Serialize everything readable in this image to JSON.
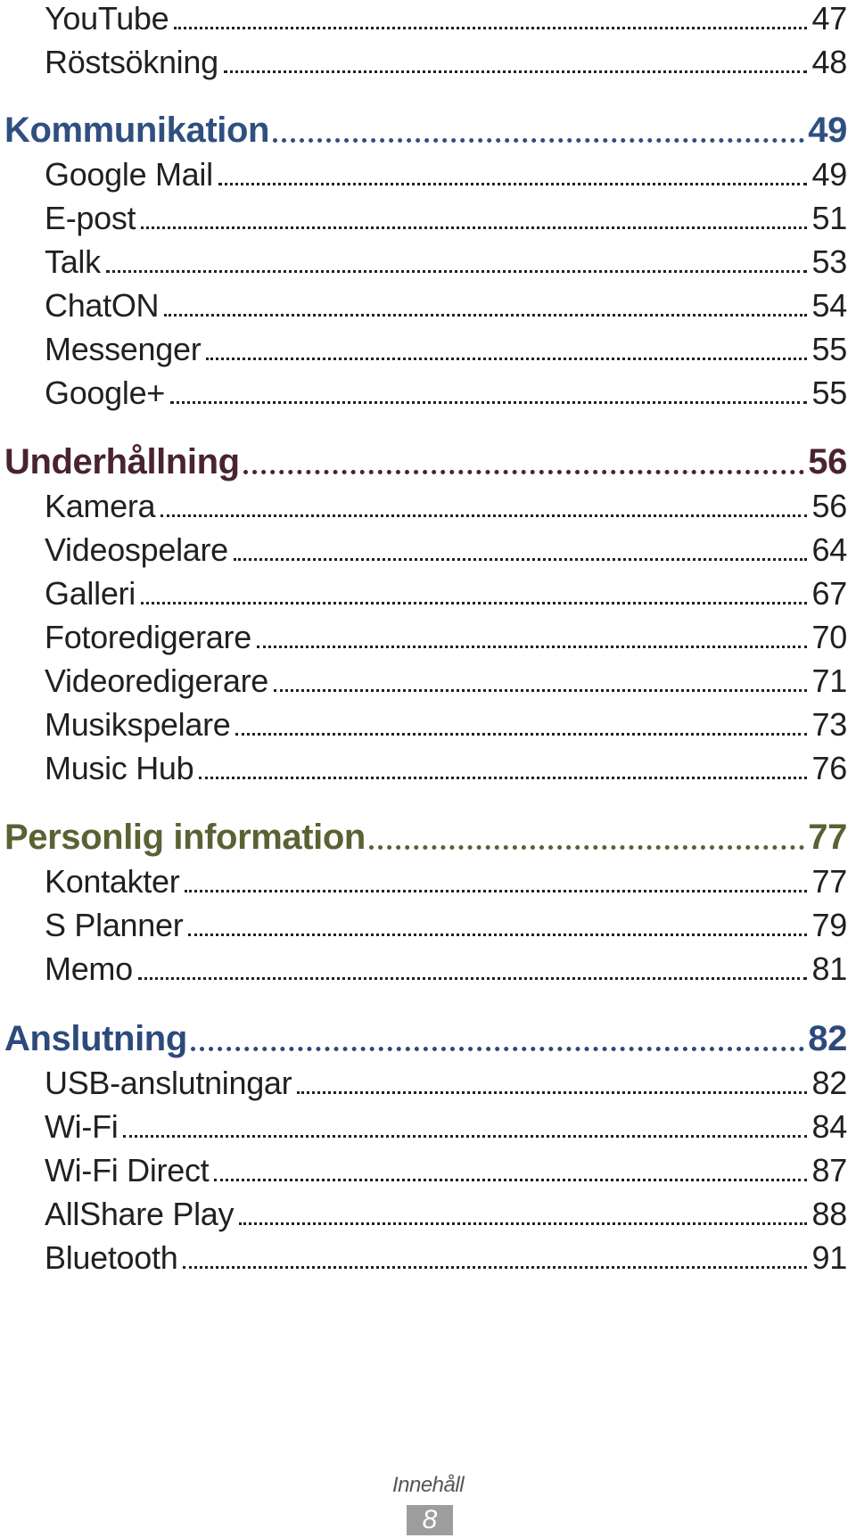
{
  "colors": {
    "text": "#231f20",
    "kommunikation": "#2f4f7f",
    "underhallning": "#4a2331",
    "personlig": "#5b6133",
    "anslutning": "#2c4a7b",
    "footer_badge": "#9d9d9d"
  },
  "toc": {
    "items": [
      {
        "type": "item",
        "title": "YouTube",
        "page": "47"
      },
      {
        "type": "item",
        "title": "Röstsökning",
        "page": "48"
      },
      {
        "type": "section",
        "title": "Kommunikation",
        "page": "49"
      },
      {
        "type": "item",
        "title": "Google Mail",
        "page": "49"
      },
      {
        "type": "item",
        "title": "E-post",
        "page": "51"
      },
      {
        "type": "item",
        "title": "Talk",
        "page": "53"
      },
      {
        "type": "item",
        "title": "ChatON",
        "page": "54"
      },
      {
        "type": "item",
        "title": "Messenger",
        "page": "55"
      },
      {
        "type": "item",
        "title": "Google+",
        "page": "55"
      },
      {
        "type": "section",
        "title": "Underhållning",
        "page": "56"
      },
      {
        "type": "item",
        "title": "Kamera",
        "page": "56"
      },
      {
        "type": "item",
        "title": "Videospelare",
        "page": "64"
      },
      {
        "type": "item",
        "title": "Galleri",
        "page": "67"
      },
      {
        "type": "item",
        "title": "Fotoredigerare",
        "page": "70"
      },
      {
        "type": "item",
        "title": "Videoredigerare",
        "page": "71"
      },
      {
        "type": "item",
        "title": "Musikspelare",
        "page": "73"
      },
      {
        "type": "item",
        "title": "Music Hub",
        "page": "76"
      },
      {
        "type": "section",
        "title": "Personlig information",
        "page": "77"
      },
      {
        "type": "item",
        "title": "Kontakter",
        "page": "77"
      },
      {
        "type": "item",
        "title": "S Planner",
        "page": "79"
      },
      {
        "type": "item",
        "title": "Memo",
        "page": "81"
      },
      {
        "type": "section",
        "title": "Anslutning",
        "page": "82"
      },
      {
        "type": "item",
        "title": "USB-anslutningar",
        "page": "82"
      },
      {
        "type": "item",
        "title": "Wi-Fi",
        "page": "84"
      },
      {
        "type": "item",
        "title": "Wi-Fi Direct",
        "page": "87"
      },
      {
        "type": "item",
        "title": "AllShare Play",
        "page": "88"
      },
      {
        "type": "item",
        "title": "Bluetooth",
        "page": "91"
      }
    ]
  },
  "footer": {
    "section_label": "Innehåll",
    "page_number": "8"
  }
}
